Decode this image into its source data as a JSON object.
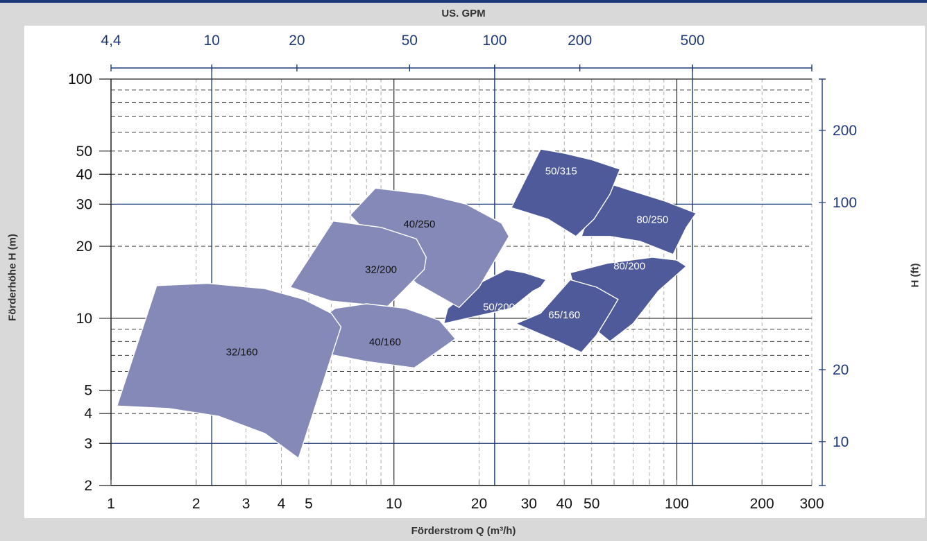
{
  "chart_data": {
    "type": "area",
    "title": "",
    "top_axis": {
      "label": "US. GPM",
      "scale": "log",
      "ticks": [
        {
          "label": "4,4",
          "value": 1
        },
        {
          "label": "10",
          "value": 2.27
        },
        {
          "label": "20",
          "value": 4.54
        },
        {
          "label": "50",
          "value": 11.36
        },
        {
          "label": "100",
          "value": 22.7
        },
        {
          "label": "200",
          "value": 45.4
        },
        {
          "label": "500",
          "value": 113.6
        }
      ]
    },
    "x_axis": {
      "label": "Förderstrom Q (m³/h)",
      "scale": "log",
      "range": [
        1,
        300
      ],
      "ticks": [
        {
          "label": "1",
          "value": 1
        },
        {
          "label": "2",
          "value": 2
        },
        {
          "label": "3",
          "value": 3
        },
        {
          "label": "4",
          "value": 4
        },
        {
          "label": "5",
          "value": 5
        },
        {
          "label": "10",
          "value": 10
        },
        {
          "label": "20",
          "value": 20
        },
        {
          "label": "30",
          "value": 30
        },
        {
          "label": "40",
          "value": 40
        },
        {
          "label": "50",
          "value": 50
        },
        {
          "label": "100",
          "value": 100
        },
        {
          "label": "200",
          "value": 200
        },
        {
          "label": "300",
          "value": 300
        }
      ]
    },
    "y_axis": {
      "label": "Förderhöhe H (m)",
      "scale": "log",
      "range": [
        2,
        100
      ],
      "ticks": [
        {
          "label": "2",
          "value": 2
        },
        {
          "label": "3",
          "value": 3
        },
        {
          "label": "4",
          "value": 4
        },
        {
          "label": "5",
          "value": 5
        },
        {
          "label": "10",
          "value": 10
        },
        {
          "label": "20",
          "value": 20
        },
        {
          "label": "30",
          "value": 30
        },
        {
          "label": "40",
          "value": 40
        },
        {
          "label": "50",
          "value": 50
        },
        {
          "label": "100",
          "value": 100
        }
      ]
    },
    "right_axis": {
      "label": "H (ft)",
      "scale": "log",
      "ticks": [
        {
          "label": "10",
          "value": 3.05
        },
        {
          "label": "20",
          "value": 6.1
        },
        {
          "label": "100",
          "value": 30.5
        },
        {
          "label": "200",
          "value": 61
        }
      ]
    },
    "grid": true,
    "colors": {
      "light": "#8489b8",
      "dark": "#4e5a99",
      "axis": "#1f3a78",
      "grid": "#222222"
    },
    "series": [
      {
        "name": "32/160",
        "shade": "light",
        "q_range": [
          1.05,
          6.5
        ],
        "h_range": [
          2.6,
          14
        ]
      },
      {
        "name": "40/160",
        "shade": "light",
        "q_range": [
          5,
          16.5
        ],
        "h_range": [
          6.2,
          12
        ]
      },
      {
        "name": "32/200",
        "shade": "light",
        "q_range": [
          4.3,
          13
        ],
        "h_range": [
          9.5,
          26
        ]
      },
      {
        "name": "40/250",
        "shade": "light",
        "q_range": [
          7,
          25
        ],
        "h_range": [
          11,
          36
        ]
      },
      {
        "name": "50/200",
        "shade": "dark",
        "q_range": [
          15,
          34
        ],
        "h_range": [
          8.5,
          16
        ]
      },
      {
        "name": "50/315",
        "shade": "dark",
        "q_range": [
          26,
          63
        ],
        "h_range": [
          22,
          54
        ]
      },
      {
        "name": "80/250",
        "shade": "dark",
        "q_range": [
          46,
          117
        ],
        "h_range": [
          19,
          40
        ]
      },
      {
        "name": "80/200",
        "shade": "dark",
        "q_range": [
          29,
          108
        ],
        "h_range": [
          8,
          25
        ]
      },
      {
        "name": "65/160",
        "shade": "dark",
        "q_range": [
          27,
          58
        ],
        "h_range": [
          7,
          15
        ]
      }
    ]
  }
}
